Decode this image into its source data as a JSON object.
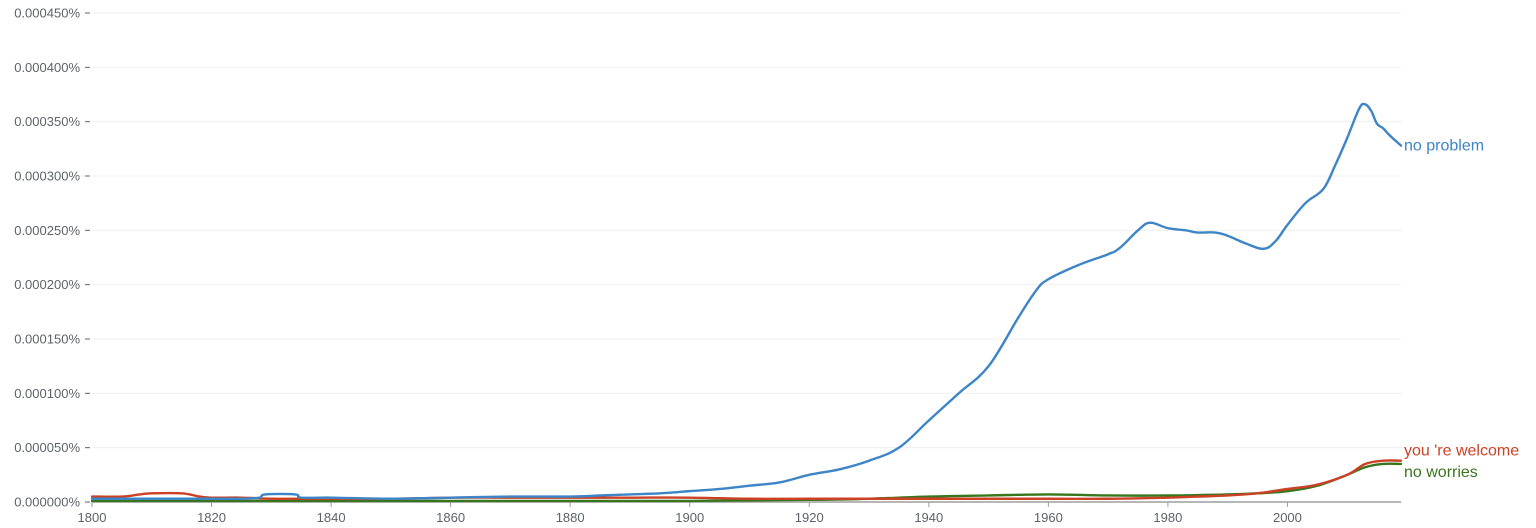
{
  "chart_data": {
    "type": "line",
    "title": "",
    "xlabel": "",
    "ylabel": "",
    "xlim": [
      1800,
      2019
    ],
    "ylim": [
      0,
      4.5e-06
    ],
    "grid": true,
    "legend": "inline-right",
    "x_ticks": [
      1800,
      1820,
      1840,
      1860,
      1880,
      1900,
      1920,
      1940,
      1960,
      1980,
      2000
    ],
    "x_tick_labels": [
      "1800",
      "1820",
      "1840",
      "1860",
      "1880",
      "1900",
      "1920",
      "1940",
      "1960",
      "1980",
      "2000"
    ],
    "y_ticks": [
      0,
      5e-07,
      1e-06,
      1.5e-06,
      2e-06,
      2.5e-06,
      3e-06,
      3.5e-06,
      4e-06,
      4.5e-06
    ],
    "y_tick_labels": [
      "0.000000%",
      "0.000050%",
      "0.000100%",
      "0.000150%",
      "0.000200%",
      "0.000250%",
      "0.000300%",
      "0.000350%",
      "0.000400%",
      "0.000450%"
    ],
    "series": [
      {
        "name": "no problem",
        "color": "#3d85c6",
        "points": [
          [
            1800,
            3e-08
          ],
          [
            1805,
            3e-08
          ],
          [
            1810,
            3e-08
          ],
          [
            1815,
            3e-08
          ],
          [
            1820,
            3e-08
          ],
          [
            1825,
            3e-08
          ],
          [
            1828,
            4e-08
          ],
          [
            1829,
            7e-08
          ],
          [
            1834,
            7e-08
          ],
          [
            1835,
            4e-08
          ],
          [
            1840,
            4e-08
          ],
          [
            1850,
            3e-08
          ],
          [
            1860,
            4e-08
          ],
          [
            1870,
            5e-08
          ],
          [
            1880,
            5e-08
          ],
          [
            1885,
            6e-08
          ],
          [
            1890,
            7e-08
          ],
          [
            1895,
            8e-08
          ],
          [
            1900,
            1e-07
          ],
          [
            1905,
            1.2e-07
          ],
          [
            1910,
            1.5e-07
          ],
          [
            1915,
            1.8e-07
          ],
          [
            1920,
            2.5e-07
          ],
          [
            1925,
            3e-07
          ],
          [
            1930,
            3.8e-07
          ],
          [
            1935,
            5e-07
          ],
          [
            1940,
            7.5e-07
          ],
          [
            1945,
            1e-06
          ],
          [
            1950,
            1.25e-06
          ],
          [
            1955,
            1.7e-06
          ],
          [
            1958,
            1.95e-06
          ],
          [
            1960,
            2.05e-06
          ],
          [
            1965,
            2.18e-06
          ],
          [
            1970,
            2.28e-06
          ],
          [
            1972,
            2.34e-06
          ],
          [
            1975,
            2.5e-06
          ],
          [
            1977,
            2.57e-06
          ],
          [
            1980,
            2.52e-06
          ],
          [
            1983,
            2.5e-06
          ],
          [
            1985,
            2.48e-06
          ],
          [
            1988,
            2.48e-06
          ],
          [
            1990,
            2.45e-06
          ],
          [
            1993,
            2.38e-06
          ],
          [
            1996,
            2.33e-06
          ],
          [
            1998,
            2.4e-06
          ],
          [
            2000,
            2.55e-06
          ],
          [
            2003,
            2.75e-06
          ],
          [
            2006,
            2.88e-06
          ],
          [
            2008,
            3.1e-06
          ],
          [
            2010,
            3.35e-06
          ],
          [
            2012,
            3.62e-06
          ],
          [
            2013,
            3.66e-06
          ],
          [
            2014,
            3.6e-06
          ],
          [
            2015,
            3.48e-06
          ],
          [
            2016,
            3.44e-06
          ],
          [
            2017,
            3.38e-06
          ],
          [
            2019,
            3.28e-06
          ]
        ]
      },
      {
        "name": "you 're welcome",
        "color": "#cc4125",
        "points": [
          [
            1800,
            5e-08
          ],
          [
            1805,
            5e-08
          ],
          [
            1808,
            7e-08
          ],
          [
            1810,
            8e-08
          ],
          [
            1815,
            8e-08
          ],
          [
            1818,
            5e-08
          ],
          [
            1820,
            4e-08
          ],
          [
            1825,
            4e-08
          ],
          [
            1830,
            3e-08
          ],
          [
            1835,
            3e-08
          ],
          [
            1840,
            3e-08
          ],
          [
            1850,
            3e-08
          ],
          [
            1860,
            4e-08
          ],
          [
            1870,
            4e-08
          ],
          [
            1880,
            4e-08
          ],
          [
            1890,
            4e-08
          ],
          [
            1900,
            4e-08
          ],
          [
            1910,
            3e-08
          ],
          [
            1920,
            3e-08
          ],
          [
            1930,
            3e-08
          ],
          [
            1940,
            3e-08
          ],
          [
            1950,
            3e-08
          ],
          [
            1960,
            3e-08
          ],
          [
            1970,
            3e-08
          ],
          [
            1980,
            4e-08
          ],
          [
            1985,
            5e-08
          ],
          [
            1990,
            6e-08
          ],
          [
            1995,
            8e-08
          ],
          [
            2000,
            1.2e-07
          ],
          [
            2005,
            1.6e-07
          ],
          [
            2010,
            2.5e-07
          ],
          [
            2013,
            3.5e-07
          ],
          [
            2016,
            3.8e-07
          ],
          [
            2019,
            3.8e-07
          ]
        ]
      },
      {
        "name": "no worries",
        "color": "#38761d",
        "points": [
          [
            1800,
            1e-08
          ],
          [
            1820,
            1e-08
          ],
          [
            1840,
            1e-08
          ],
          [
            1860,
            1e-08
          ],
          [
            1880,
            1e-08
          ],
          [
            1900,
            1e-08
          ],
          [
            1920,
            2e-08
          ],
          [
            1930,
            3e-08
          ],
          [
            1940,
            5e-08
          ],
          [
            1950,
            6e-08
          ],
          [
            1960,
            7e-08
          ],
          [
            1970,
            6e-08
          ],
          [
            1980,
            6e-08
          ],
          [
            1990,
            7e-08
          ],
          [
            1995,
            8e-08
          ],
          [
            2000,
            1e-07
          ],
          [
            2005,
            1.5e-07
          ],
          [
            2010,
            2.5e-07
          ],
          [
            2013,
            3.2e-07
          ],
          [
            2016,
            3.5e-07
          ],
          [
            2019,
            3.5e-07
          ]
        ]
      }
    ]
  }
}
